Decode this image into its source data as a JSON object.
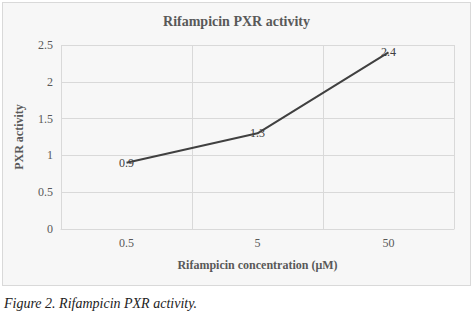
{
  "chart_data": {
    "type": "line",
    "title": "Rifampicin PXR activity",
    "caption": "Figure 2. Rifampicin PXR activity.",
    "x_label": "Rifampicin concentration (μM)",
    "y_label": "PXR activity",
    "categories": [
      "0.5",
      "5",
      "50"
    ],
    "values": [
      0.9,
      1.3,
      2.4
    ],
    "color": "#404040",
    "ylim": [
      0,
      2.5
    ],
    "yticks": [
      0,
      0.5,
      1,
      1.5,
      2,
      2.5
    ],
    "grid": true,
    "data_labels": true
  }
}
